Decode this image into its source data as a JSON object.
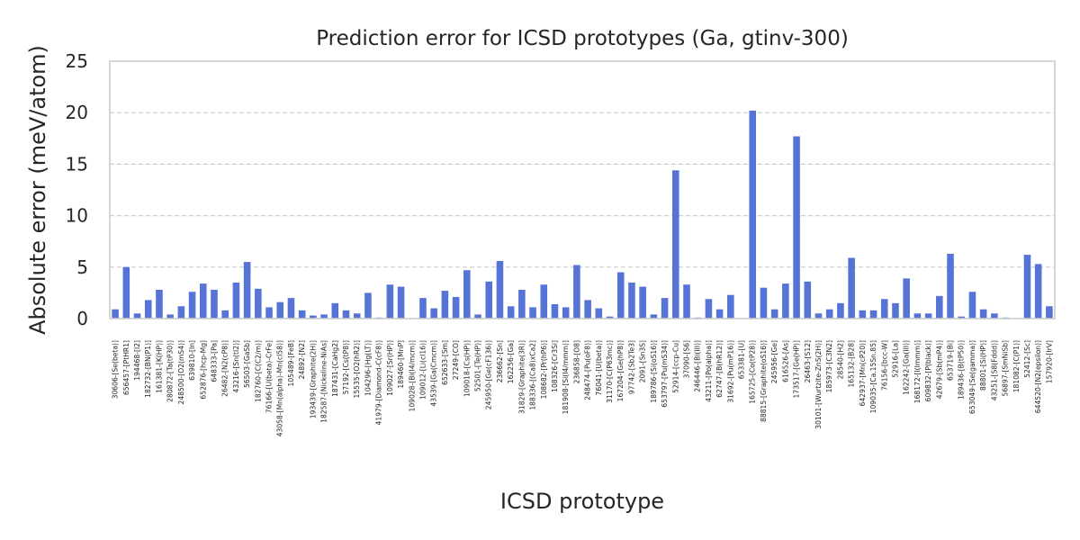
{
  "chart_data": {
    "type": "bar",
    "title": "Prediction error for ICSD prototypes (Ga, gtinv-300)",
    "xlabel": "ICSD prototype",
    "ylabel": "Absolute error (meV/atom)",
    "ylim": [
      0,
      25
    ],
    "yticks": [
      0,
      5,
      10,
      15,
      20,
      25
    ],
    "grid": "y-dashed",
    "bar_color": "#5673d6",
    "grid_color": "#cccccc",
    "frame_color": "#cccccc",
    "categories": [
      "30606-[Se(beta)]",
      "656457-[PtHR1]",
      "194468-[I2]",
      "182732-[BN(P1)]",
      "161381-[K(HP)]",
      "280872-[Ta(tP30)]",
      "248500-[O2(mS4)]",
      "639810-[In]",
      "652876-[hcp-Mg]",
      "648333-[Pa]",
      "26482-[N2(cP8)]",
      "43216-[Sn(tI2)]",
      "56503-[GaSb]",
      "182760-[C(C2/m)]",
      "76166-[U(beta)-CrFe]",
      "43058-[Mn(alpha)-Mn(cI58)]",
      "105489-[FeB]",
      "24892-[N2]",
      "193439-[Graphite(2H)]",
      "182587-[Nickeline-NiAs]",
      "187431-[CaHg2]",
      "57192-[Cs(tP8)]",
      "15535-[O2(hR2)]",
      "104296-[Hg(LT)]",
      "41979-[Diamond-C(cF8)]",
      "109027-[Sr(HP)]",
      "189460-[MnP]",
      "109028-[Bi(I4/mcm)]",
      "109012-[Li(cI16)]",
      "43539-[Ga(Cmcm)]",
      "652633-[Sm]",
      "27249-[CO]",
      "109018-[Cs(HP)]",
      "52501-[Te(HP)]",
      "245950-[Ge(cF136)]",
      "236662-[Sn]",
      "162256-[Ga]",
      "31829-[Graphite(3R)]",
      "188336-[(Ca8)xCa2]",
      "108682-[Pr(hP6)]",
      "108326-[Cr3Si]",
      "181908-[Si(I4/mmm)]",
      "236858-[O8]",
      "248474-[Pu(oF8)]",
      "76041-[U(beta)]",
      "31170-[C(P63mc)]",
      "167204-[Ge(hP8)]",
      "97742-[Sb2Te3]",
      "2091-[Sn3S]",
      "189786-[Si(oS16)]",
      "653797-[Pu(mS34)]",
      "52914-[ccp-Cu]",
      "37090-[S6]",
      "246446-[Bi(III)]",
      "43211-[Po(alpha)]",
      "62747-[B(hR12)]",
      "31692-[Pu(mP16)]",
      "653381-[U]",
      "165725-[Co(tP28)]",
      "88815-[Graphite(oS16)]",
      "245956-[Ge]",
      "616526-[As]",
      "173517-[Ge(HP)]",
      "26463-[S12]",
      "30101-[Wurtzite-ZnS(2H)]",
      "185973-[C3N2]",
      "28540-[H2]",
      "165132-[B28]",
      "642937-[Mn(cP20)]",
      "109035-[Ca.15Sn.85]",
      "76156-[bcc-W]",
      "52916-[La]",
      "162242-[Ga(III)]",
      "168172-[I(Immm)]",
      "609832-[P(black)]",
      "42679-[Sb(mP4)]",
      "653719-[Bi]",
      "189436-[B(tP50)]",
      "653049-[Se(gamma)]",
      "88801-[Si(HP)]",
      "43251-[S8(Fddd)]",
      "56897-[SmNiSb]",
      "181082-[C(P1)]",
      "52412-[Sc]",
      "644520-[N2(epsilon)]",
      "157920-[IrV]"
    ],
    "values": [
      0.9,
      5.0,
      0.5,
      1.8,
      2.8,
      0.4,
      1.2,
      2.6,
      3.4,
      2.8,
      0.8,
      3.5,
      5.5,
      2.9,
      1.1,
      1.6,
      2.0,
      0.8,
      0.3,
      0.4,
      1.5,
      0.8,
      0.5,
      2.5,
      0.1,
      3.3,
      3.1,
      0.0,
      2.0,
      1.0,
      2.7,
      2.1,
      4.7,
      0.4,
      3.6,
      5.6,
      1.2,
      2.8,
      1.1,
      3.3,
      1.4,
      1.1,
      5.2,
      1.8,
      1.0,
      0.2,
      4.5,
      3.5,
      3.1,
      0.4,
      2.0,
      14.4,
      3.3,
      0.1,
      1.9,
      0.9,
      2.3,
      0.0,
      20.2,
      3.0,
      0.9,
      3.4,
      17.7,
      3.6,
      0.5,
      0.9,
      1.5,
      5.9,
      0.8,
      0.8,
      1.9,
      1.5,
      3.9,
      0.5,
      0.5,
      2.2,
      6.3,
      0.2,
      2.6,
      0.9,
      0.5,
      0.1,
      0.0,
      6.2,
      5.3,
      1.2
    ]
  }
}
